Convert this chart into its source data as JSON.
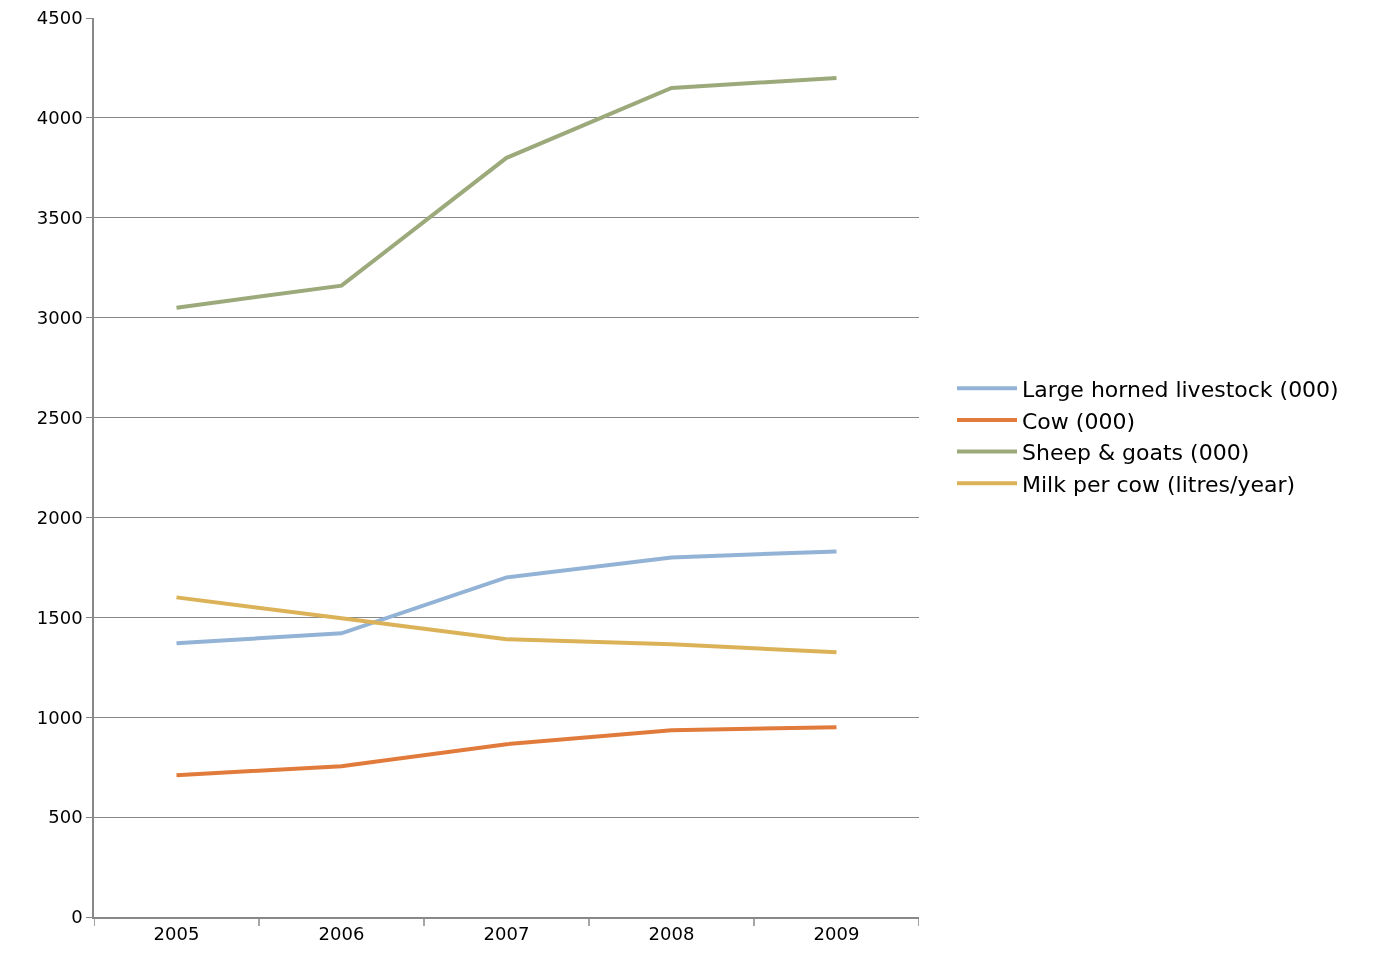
{
  "chart_data": {
    "type": "line",
    "categories": [
      "2005",
      "2006",
      "2007",
      "2008",
      "2009"
    ],
    "series": [
      {
        "name": "Large horned livestock (000)",
        "color": "#93b3d6",
        "values": [
          1370,
          1420,
          1700,
          1800,
          1830
        ]
      },
      {
        "name": "Cow (000)",
        "color": "#e07b3c",
        "values": [
          710,
          755,
          865,
          935,
          950
        ]
      },
      {
        "name": "Sheep & goats (000)",
        "color": "#9caa7b",
        "values": [
          3050,
          3160,
          3800,
          4150,
          4200
        ]
      },
      {
        "name": "Milk per cow (litres/year)",
        "color": "#dbb257",
        "values": [
          1600,
          1495,
          1390,
          1365,
          1325
        ]
      }
    ],
    "ylim": [
      0,
      4500
    ],
    "yticks": [
      0,
      500,
      1000,
      1500,
      2000,
      2500,
      3000,
      3500,
      4000,
      4500
    ],
    "grid": "y",
    "legend": "right",
    "marker": "none",
    "line_style": "solid"
  }
}
